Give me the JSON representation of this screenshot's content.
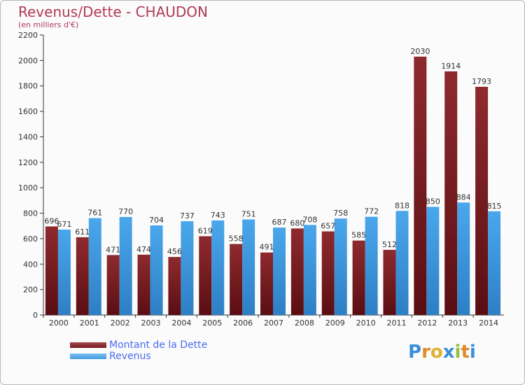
{
  "header": {
    "title": "Revenus/Dette - CHAUDON",
    "subtitle": "(en milliers d'€)"
  },
  "legend": [
    {
      "label": "Montant de la Dette",
      "color": "#7a1b1f"
    },
    {
      "label": "Revenus",
      "color": "#3f9be0"
    }
  ],
  "logo": {
    "letters": [
      "P",
      "r",
      "o",
      "x",
      "i",
      "t",
      "i"
    ],
    "colors": [
      "#3a8fd8",
      "#e08a2a",
      "#e0b030",
      "#3a8fd8",
      "#90c040",
      "#e08a2a",
      "#3a8fd8"
    ]
  },
  "chart_data": {
    "type": "bar",
    "title": "Revenus/Dette - CHAUDON",
    "subtitle": "(en milliers d'€)",
    "xlabel": "",
    "ylabel": "",
    "ylim": [
      0,
      2200
    ],
    "yticks": [
      0,
      200,
      400,
      600,
      800,
      1000,
      1200,
      1400,
      1600,
      1800,
      2000,
      2200
    ],
    "grid": false,
    "legend_position": "bottom-left",
    "categories": [
      "2000",
      "2001",
      "2002",
      "2003",
      "2004",
      "2005",
      "2006",
      "2007",
      "2008",
      "2009",
      "2010",
      "2011",
      "2012",
      "2013",
      "2014"
    ],
    "series": [
      {
        "name": "Montant de la Dette",
        "color": "#7a1b1f",
        "values": [
          696,
          611,
          471,
          474,
          456,
          619,
          558,
          491,
          680,
          657,
          585,
          512,
          2030,
          1914,
          1793
        ]
      },
      {
        "name": "Revenus",
        "color": "#3f9be0",
        "values": [
          671,
          761,
          770,
          704,
          737,
          743,
          751,
          687,
          708,
          758,
          772,
          818,
          850,
          884,
          815
        ]
      }
    ]
  }
}
